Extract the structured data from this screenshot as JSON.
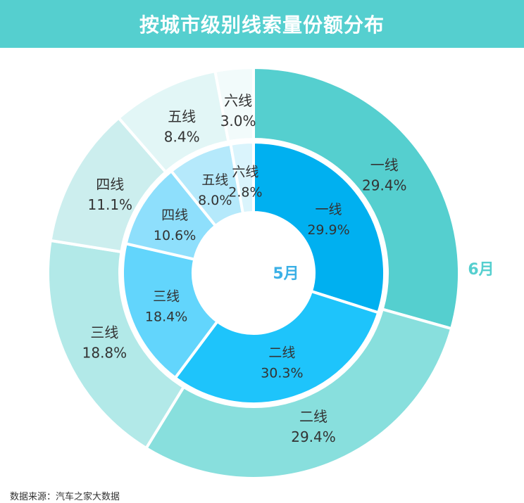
{
  "header": {
    "title": "按城市级别线索量份额分布"
  },
  "chart_data": {
    "type": "pie",
    "title": "按城市级别线索量份额分布",
    "categories": [
      "一线",
      "二线",
      "三线",
      "四线",
      "五线",
      "六线"
    ],
    "series": [
      {
        "name": "5月",
        "ring": "inner",
        "values": [
          29.9,
          30.3,
          18.4,
          10.6,
          8.0,
          2.8
        ],
        "labels": [
          "29.9%",
          "30.3%",
          "18.4%",
          "10.6%",
          "8.0%",
          "2.8%"
        ],
        "colors": [
          "#00b0f0",
          "#1ec4fb",
          "#62d5fc",
          "#8edffc",
          "#b5e9fb",
          "#daf4fc"
        ]
      },
      {
        "name": "6月",
        "ring": "outer",
        "values": [
          29.4,
          29.4,
          18.8,
          11.1,
          8.4,
          3.0
        ],
        "labels": [
          "29.4%",
          "29.4%",
          "18.8%",
          "11.1%",
          "8.4%",
          "3.0%"
        ],
        "colors": [
          "#55cfcf",
          "#88dfdd",
          "#b2e9e8",
          "#cceeee",
          "#e2f6f6",
          "#f2fbfb"
        ]
      }
    ],
    "label_color": "#333333",
    "series_label_color": "#3bb0e6",
    "outer_series_label_color": "#55cfcf"
  },
  "footer": {
    "source": "数据来源：汽车之家大数据"
  }
}
